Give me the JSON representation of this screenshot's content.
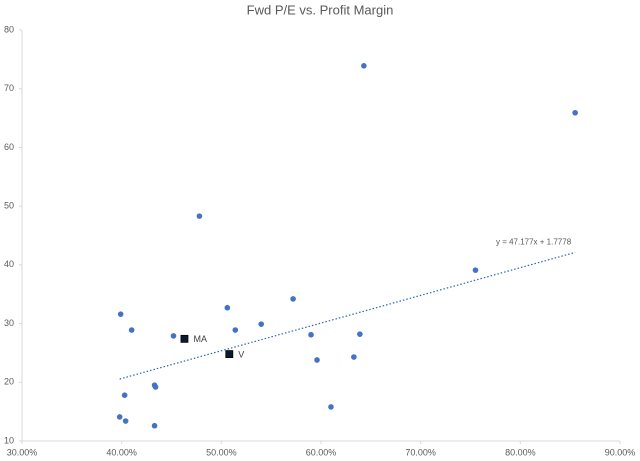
{
  "chart_data": {
    "type": "scatter",
    "title": "Fwd P/E vs. Profit Margin",
    "xlim": [
      0.3,
      0.9
    ],
    "xticks": [
      {
        "value": 0.3,
        "label": "30.00%"
      },
      {
        "value": 0.4,
        "label": "40.00%"
      },
      {
        "value": 0.5,
        "label": "50.00%"
      },
      {
        "value": 0.6,
        "label": "60.00%"
      },
      {
        "value": 0.7,
        "label": "70.00%"
      },
      {
        "value": 0.8,
        "label": "80.00%"
      },
      {
        "value": 0.9,
        "label": "90.00%"
      }
    ],
    "ylim": [
      10,
      80
    ],
    "yticks": [
      10,
      20,
      30,
      40,
      50,
      60,
      70,
      80
    ],
    "grid": false,
    "series": [
      {
        "color": "#4472c4",
        "marker": "circle",
        "x": [
          0.643,
          0.855,
          0.478,
          0.755,
          0.572,
          0.506,
          0.399,
          0.54,
          0.41,
          0.514,
          0.452,
          0.59,
          0.639,
          0.596,
          0.633,
          0.433,
          0.434,
          0.403,
          0.398,
          0.404,
          0.61,
          0.433
        ],
        "values": [
          73.9,
          65.9,
          48.3,
          39.1,
          34.2,
          32.7,
          31.6,
          29.9,
          28.9,
          28.9,
          27.9,
          28.1,
          28.2,
          23.8,
          24.3,
          19.5,
          19.2,
          17.8,
          14.1,
          13.4,
          15.8,
          12.6
        ]
      },
      {
        "color": "#0d1a2e",
        "marker": "square",
        "x": [
          0.463,
          0.508
        ],
        "values": [
          27.4,
          24.8
        ],
        "point_labels": [
          "MA",
          "V"
        ]
      }
    ],
    "trendline": {
      "slope": 47.177,
      "intercept": 1.7778,
      "color": "#2e64b4",
      "label": "y = 47.177x + 1.7778"
    }
  }
}
